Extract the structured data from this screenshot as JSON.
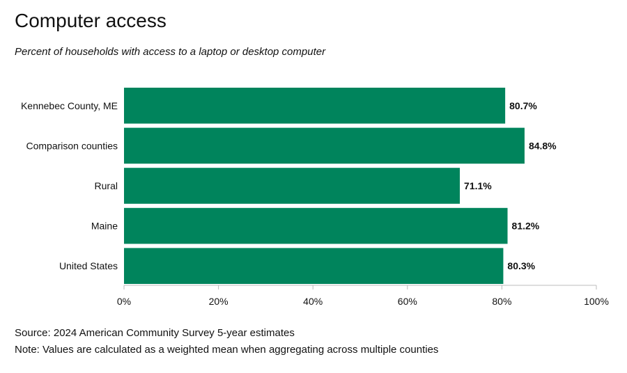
{
  "header": {
    "title": "Computer access",
    "subtitle": "Percent of households with access to a laptop or desktop computer"
  },
  "footer": {
    "source": "Source: 2024 American Community Survey 5-year estimates",
    "note": "Note: Values are calculated as a weighted mean when aggregating across multiple counties"
  },
  "colors": {
    "bar": "#00845c",
    "axis": "#bbbbbb"
  },
  "chart_data": {
    "type": "bar",
    "orientation": "horizontal",
    "title": "Computer access",
    "subtitle": "Percent of households with access to a laptop or desktop computer",
    "categories": [
      "Kennebec County, ME",
      "Comparison counties",
      "Rural",
      "Maine",
      "United States"
    ],
    "values": [
      80.7,
      84.8,
      71.1,
      81.2,
      80.3
    ],
    "value_labels": [
      "80.7%",
      "84.8%",
      "71.1%",
      "81.2%",
      "80.3%"
    ],
    "xlim": [
      0,
      100
    ],
    "ticks": [
      0,
      20,
      40,
      60,
      80,
      100
    ],
    "tick_labels": [
      "0%",
      "20%",
      "40%",
      "60%",
      "80%",
      "100%"
    ],
    "xlabel": "",
    "ylabel": "",
    "grid": false,
    "legend": "none"
  }
}
